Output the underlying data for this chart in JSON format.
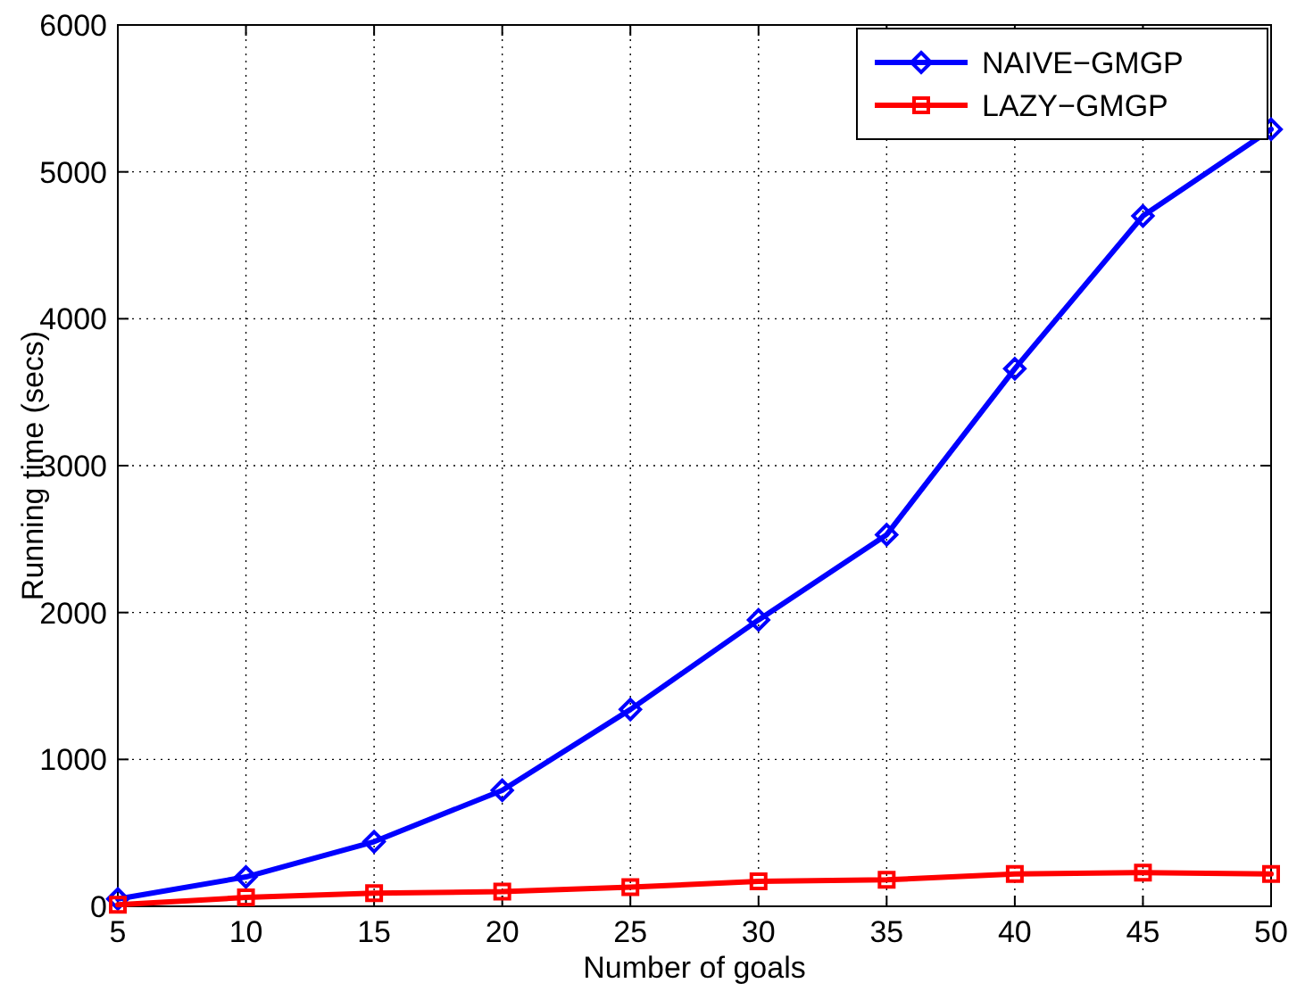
{
  "chart_data": {
    "type": "line",
    "xlabel": "Number of goals",
    "ylabel": "Running time (secs)",
    "x": [
      5,
      10,
      15,
      20,
      25,
      30,
      35,
      40,
      45,
      50
    ],
    "series": [
      {
        "name": "NAIVE−GMGP",
        "color": "#0000ff",
        "marker": "diamond",
        "values": [
          50,
          200,
          440,
          790,
          1340,
          1950,
          2530,
          3660,
          4700,
          5290
        ]
      },
      {
        "name": "LAZY−GMGP",
        "color": "#ff0000",
        "marker": "square",
        "values": [
          10,
          60,
          90,
          100,
          130,
          170,
          180,
          220,
          230,
          220
        ]
      }
    ],
    "xlim": [
      5,
      50
    ],
    "xticks": [
      5,
      10,
      15,
      20,
      25,
      30,
      35,
      40,
      45,
      50
    ],
    "ylim": [
      0,
      6000
    ],
    "yticks": [
      0,
      1000,
      2000,
      3000,
      4000,
      5000,
      6000
    ],
    "grid": true,
    "legend": "top right",
    "line_style": "solid"
  }
}
